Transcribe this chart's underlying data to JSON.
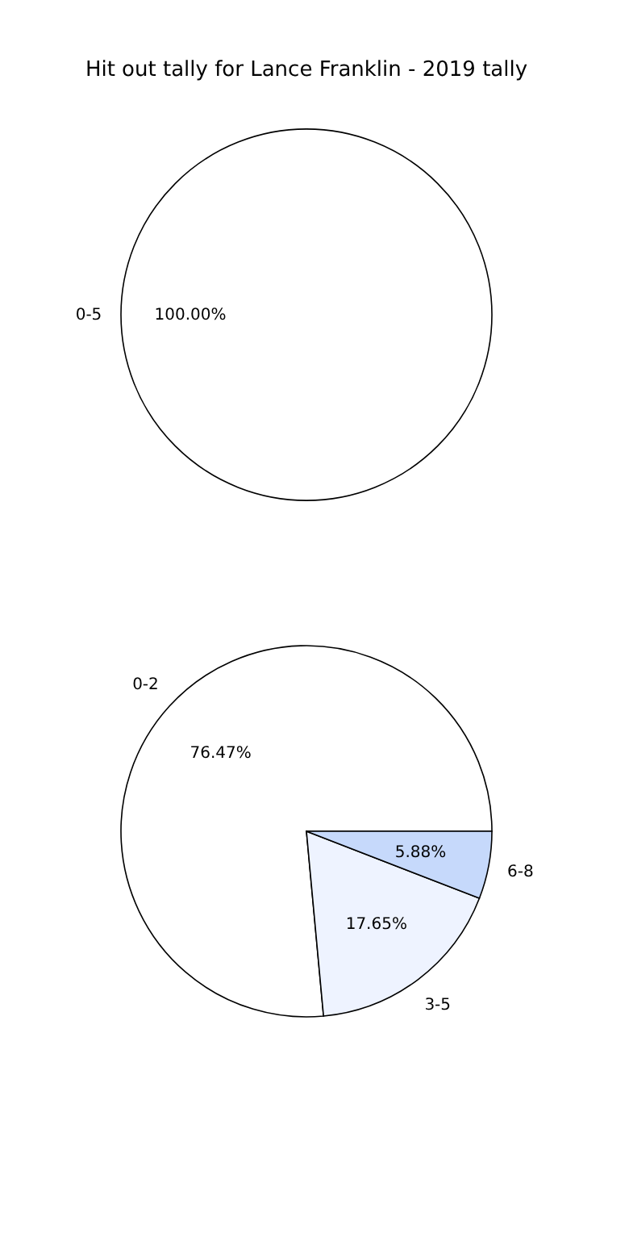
{
  "chart_data": [
    {
      "type": "pie",
      "title": "Hit out tally for Lance Franklin - 2019 tally",
      "categories": [
        "0-5"
      ],
      "values": [
        100
      ],
      "colors": [
        "#ffffff"
      ],
      "value_labels": [
        "100.00%"
      ]
    },
    {
      "type": "pie",
      "categories": [
        "0-2",
        "3-5",
        "6-8"
      ],
      "values": [
        76.47,
        17.65,
        5.88
      ],
      "colors": [
        "#ffffff",
        "#eef3ff",
        "#c6d9fb"
      ],
      "value_labels": [
        "76.47%",
        "17.65%",
        "5.88%"
      ]
    }
  ]
}
